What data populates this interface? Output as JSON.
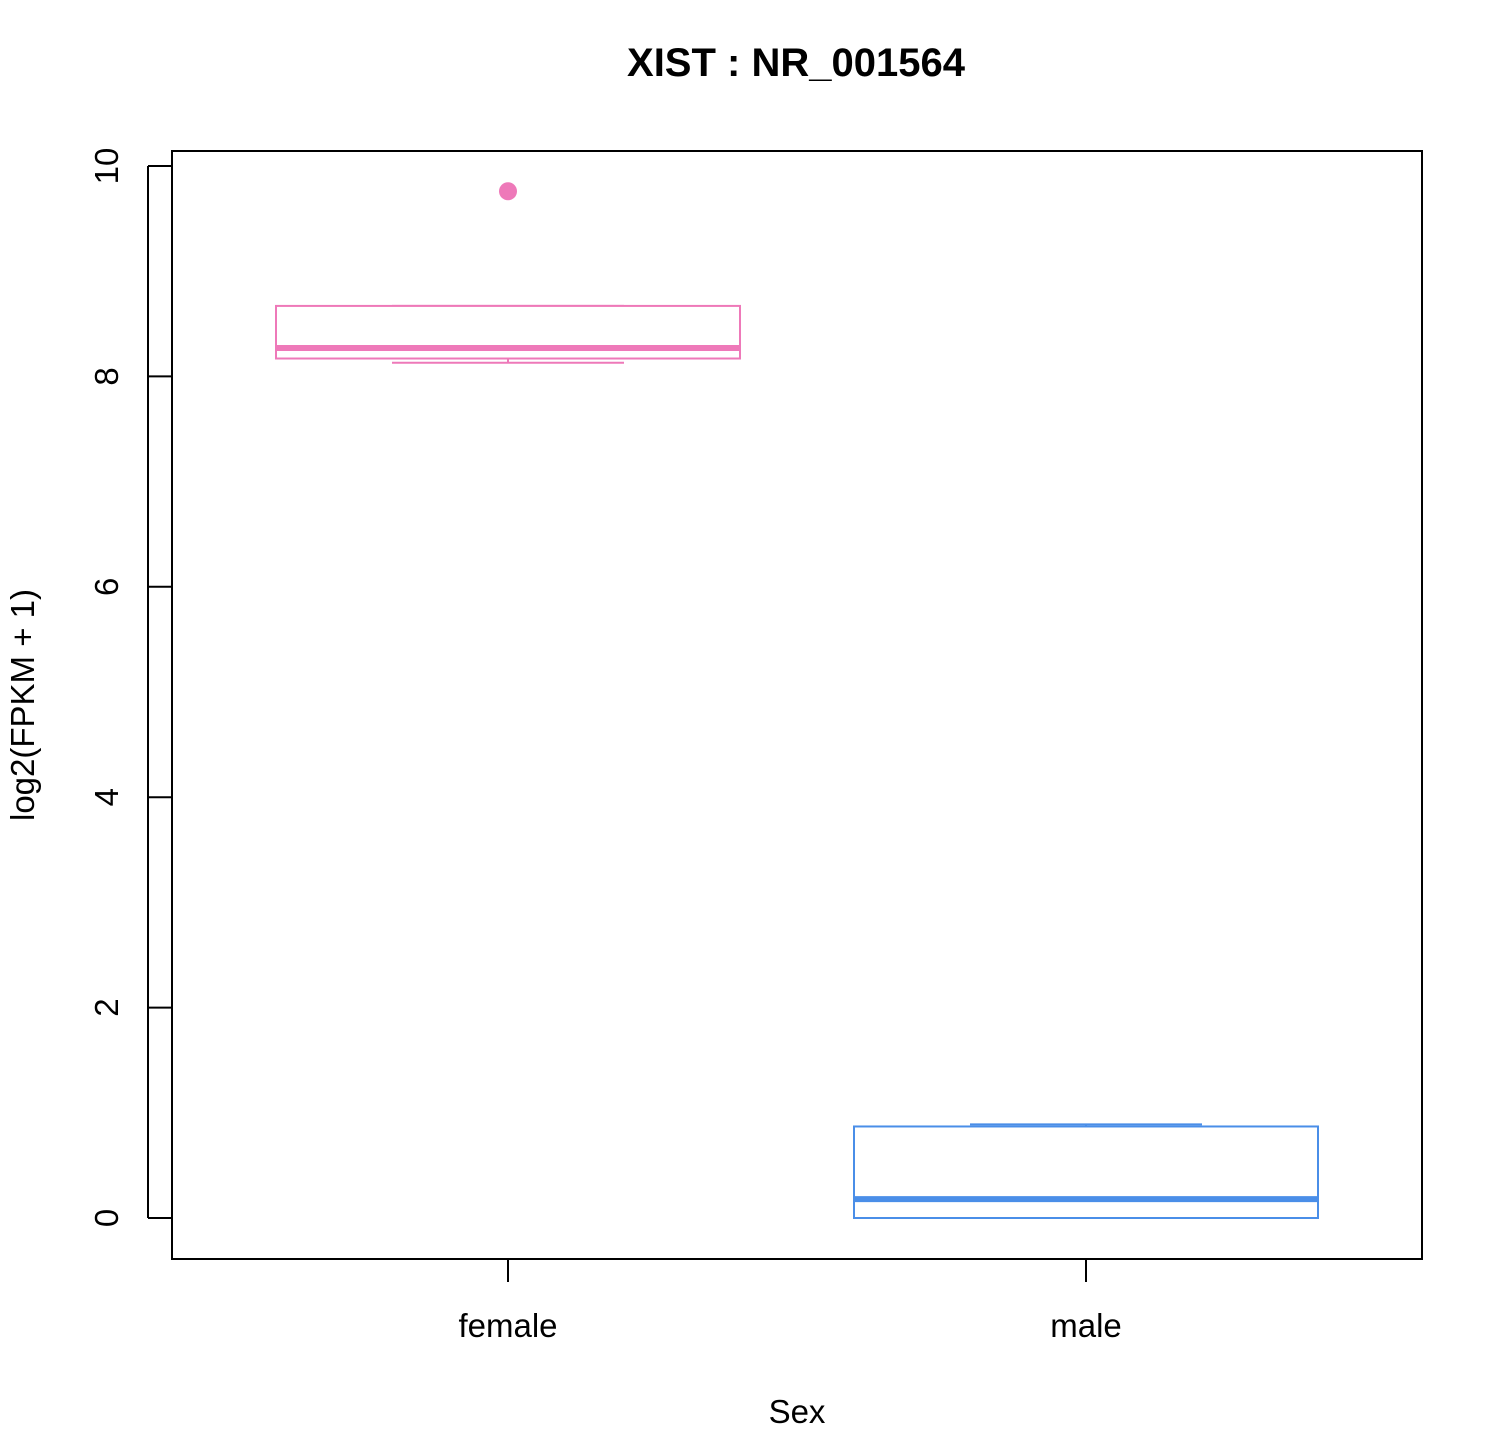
{
  "chart_data": {
    "type": "box",
    "title": "XIST  :  NR_001564",
    "xlabel": "Sex",
    "ylabel": "log2(FPKM + 1)",
    "ylim": [
      -0.4,
      10.15
    ],
    "yticks": [
      0,
      2,
      4,
      6,
      8,
      10
    ],
    "grid": false,
    "categories": [
      "female",
      "male"
    ],
    "boxes": [
      {
        "category": "female",
        "color": "#ee79b9",
        "whisker_low": 8.13,
        "q1": 8.17,
        "median": 8.27,
        "q3": 8.67,
        "whisker_high": 8.67,
        "outliers": [
          9.76
        ]
      },
      {
        "category": "male",
        "color": "#4a8ee8",
        "whisker_low": 0.0,
        "q1": 0.0,
        "median": 0.18,
        "q3": 0.87,
        "whisker_high": 0.89,
        "outliers": []
      }
    ]
  }
}
